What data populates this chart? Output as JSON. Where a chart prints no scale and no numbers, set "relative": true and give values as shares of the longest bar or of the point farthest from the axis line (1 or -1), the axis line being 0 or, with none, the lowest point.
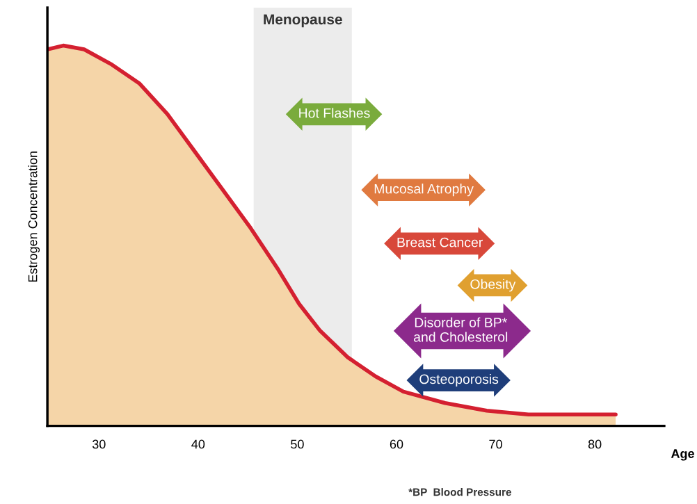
{
  "chart_data": {
    "type": "area",
    "relative": true,
    "xlabel": "Age",
    "ylabel": "Estrogen Concentration",
    "xlim": [
      24.8,
      87
    ],
    "xticks": [
      30,
      40,
      50,
      60,
      70,
      80
    ],
    "grid": false,
    "x": [
      24.8,
      26.4,
      28.5,
      31.3,
      34.1,
      36.9,
      39.7,
      42.5,
      45.3,
      48.1,
      50.2,
      52.3,
      55.1,
      57.9,
      60.7,
      64.9,
      69.1,
      73.3,
      77.5,
      82.1
    ],
    "series": [
      {
        "color": "#d42030",
        "values": [
          0.99,
          1.0,
          0.99,
          0.95,
          0.9,
          0.82,
          0.72,
          0.62,
          0.52,
          0.41,
          0.32,
          0.25,
          0.18,
          0.13,
          0.09,
          0.06,
          0.04,
          0.03,
          0.03,
          0.03
        ]
      }
    ],
    "bands": [
      {
        "axis": "x",
        "from": 45.6,
        "to": 55.5,
        "label": "Menopause",
        "color": "#e6e6e6"
      }
    ],
    "annotations": [
      "Hot Flashes",
      "Mucosal Atrophy",
      "Breast Cancer",
      "Obesity",
      "Disorder of BP*\nand Cholesterol",
      "Osteoporosis",
      "*BP  Blood Pressure"
    ]
  }
}
